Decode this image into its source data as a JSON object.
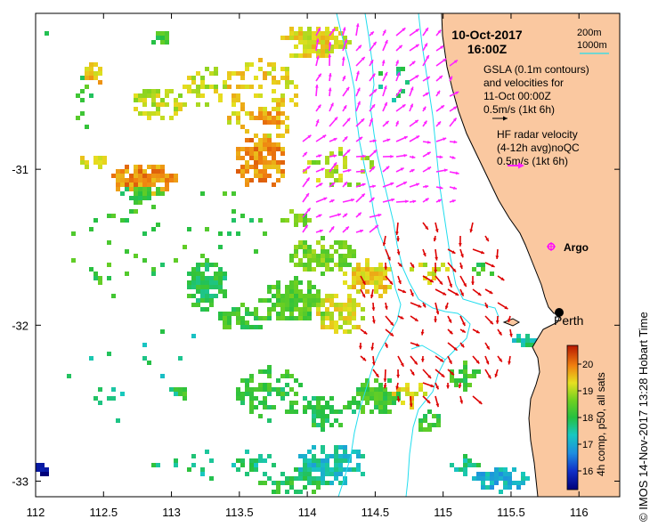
{
  "header": {
    "date": "10-Oct-2017",
    "time": "16:00Z"
  },
  "legend": {
    "contour_200m": "200m",
    "contour_1000m": "1000m",
    "gsla_line1": "GSLA (0.1m contours)",
    "gsla_line2": "and velocities for",
    "gsla_line3": "11-Oct 00:00Z",
    "gsla_scale": "0.5m/s (1kt 6h)",
    "hf_line1": "HF radar velocity",
    "hf_line2": "(4-12h avg)noQC",
    "hf_scale": "0.5m/s (1kt 6h)"
  },
  "places": {
    "argo": "Argo",
    "perth": "Perth"
  },
  "colorbar": {
    "title": "4h comp, p50, all sats",
    "ticks": [
      "16",
      "17",
      "18",
      "19",
      "20"
    ],
    "range": [
      15.3,
      20.7
    ]
  },
  "footer": {
    "credit": "© IMOS 14-Nov-2017 13:28 Hobart Time"
  },
  "axes": {
    "x_ticks": [
      "112",
      "112.5",
      "113",
      "113.5",
      "114",
      "114.5",
      "115",
      "115.5",
      "116"
    ],
    "y_ticks": [
      "-31",
      "-32",
      "-33"
    ],
    "lon_range": [
      112,
      116.3
    ],
    "lat_range": [
      -33.1,
      -30.0
    ]
  },
  "colors": {
    "land": "#FAC8A0",
    "coastline": "#000000",
    "contour": "#22DDEE",
    "gsla_arrow": "#FF22FF",
    "hf_arrow": "#DD0000",
    "argo_marker": "#FF00FF"
  },
  "icons": {
    "argo": "argo-float-icon",
    "perth": "city-dot-icon"
  }
}
